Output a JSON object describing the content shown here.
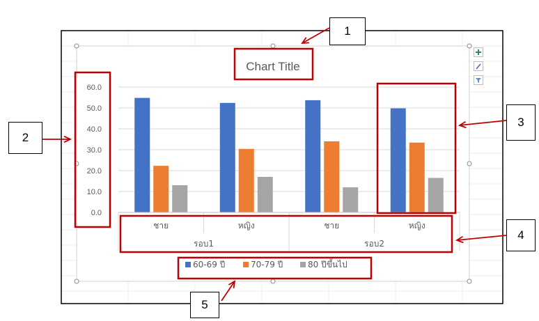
{
  "chart_data": {
    "type": "bar",
    "title": "Chart Title",
    "categories": [
      "ชาย",
      "หญิง",
      "ชาย",
      "หญิง"
    ],
    "groups": [
      "รอบ1",
      "รอบ2"
    ],
    "series": [
      {
        "name": "60-69 ปี",
        "color": "#4472C4",
        "values": [
          54.8,
          52.4,
          53.7,
          49.8
        ]
      },
      {
        "name": "70-79 ปี",
        "color": "#ED7D31",
        "values": [
          22.3,
          30.4,
          34.0,
          33.4
        ]
      },
      {
        "name": "80 ปีขึ้นไป",
        "color": "#A5A5A5",
        "values": [
          13.0,
          17.0,
          12.0,
          16.5
        ]
      }
    ],
    "yticks": [
      "0.0",
      "10.0",
      "20.0",
      "30.0",
      "40.0",
      "50.0",
      "60.0"
    ],
    "ylim": [
      0,
      60
    ],
    "grid": true,
    "legend_position": "bottom"
  },
  "callouts": [
    "1",
    "2",
    "3",
    "4",
    "5"
  ],
  "colors": {
    "annotation": "#C00000",
    "gridline": "#D9D9D9",
    "axis_text": "#595959"
  },
  "side_buttons": [
    "plus-icon",
    "brush-icon",
    "filter-icon"
  ]
}
